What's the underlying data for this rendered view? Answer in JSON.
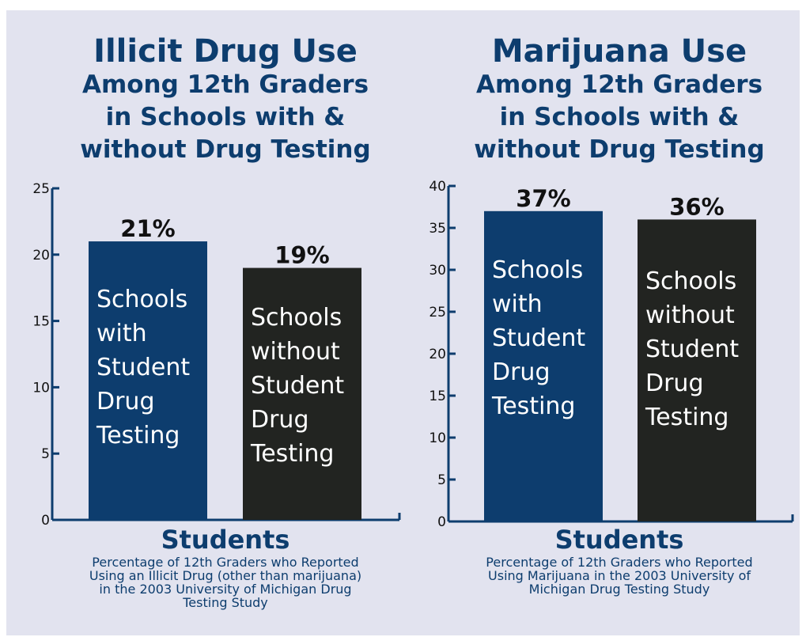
{
  "chart_data": [
    {
      "type": "bar",
      "title": "Illicit Drug Use",
      "subtitle": [
        "Among 12th Graders",
        "in Schools with &",
        "without Drug Testing"
      ],
      "categories": [
        "Schools with Student Drug Testing",
        "Schools without Student Drug Testing"
      ],
      "category_lines": [
        [
          "Schools",
          "with",
          "Student",
          "Drug",
          "Testing"
        ],
        [
          "Schools",
          "without",
          "Student",
          "Drug",
          "Testing"
        ]
      ],
      "values": [
        21,
        19
      ],
      "data_labels": [
        "21%",
        "19%"
      ],
      "bar_colors": [
        "#0d3d6e",
        "#222421"
      ],
      "xlabel": "Students",
      "caption": [
        "Percentage of 12th Graders who Reported",
        "Using an Illicit Drug (other than marijuana)",
        "in the 2003 University of Michigan Drug",
        "Testing Study"
      ],
      "ylim": [
        0,
        25
      ],
      "yticks": [
        0,
        5,
        10,
        15,
        20,
        25
      ],
      "grid": false
    },
    {
      "type": "bar",
      "title": "Marijuana Use",
      "subtitle": [
        "Among 12th Graders",
        "in Schools with &",
        "without Drug Testing"
      ],
      "categories": [
        "Schools with Student Drug Testing",
        "Schools without Student Drug Testing"
      ],
      "category_lines": [
        [
          "Schools",
          "with",
          "Student",
          "Drug",
          "Testing"
        ],
        [
          "Schools",
          "without",
          "Student",
          "Drug",
          "Testing"
        ]
      ],
      "values": [
        37,
        36
      ],
      "data_labels": [
        "37%",
        "36%"
      ],
      "bar_colors": [
        "#0d3d6e",
        "#222421"
      ],
      "xlabel": "Students",
      "caption": [
        "Percentage of 12th Graders who Reported",
        "Using Marijuana in the 2003 University of",
        "Michigan Drug Testing Study"
      ],
      "ylim": [
        0,
        40
      ],
      "yticks": [
        0,
        5,
        10,
        15,
        20,
        25,
        30,
        35,
        40
      ],
      "grid": false
    }
  ]
}
